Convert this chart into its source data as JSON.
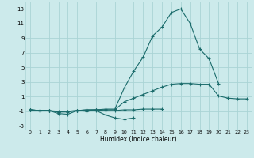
{
  "xlabel": "Humidex (Indice chaleur)",
  "bg_color": "#cceaeb",
  "grid_color": "#aad4d5",
  "line_color": "#1a6b6b",
  "xlim": [
    -0.5,
    23.5
  ],
  "ylim": [
    -3.5,
    14.0
  ],
  "xticks": [
    0,
    1,
    2,
    3,
    4,
    5,
    6,
    7,
    8,
    9,
    10,
    11,
    12,
    13,
    14,
    15,
    16,
    17,
    18,
    19,
    20,
    21,
    22,
    23
  ],
  "yticks": [
    -3,
    -1,
    1,
    3,
    5,
    7,
    9,
    11,
    13
  ],
  "series": [
    {
      "x": [
        0,
        1,
        2,
        3,
        4,
        5,
        6,
        7,
        8,
        9,
        10,
        11
      ],
      "y": [
        -0.8,
        -0.9,
        -0.9,
        -1.3,
        -1.4,
        -0.9,
        -1.0,
        -0.9,
        -1.5,
        -1.9,
        -2.1,
        -1.9
      ]
    },
    {
      "x": [
        0,
        1,
        2,
        3,
        4,
        5,
        6,
        7,
        8,
        9,
        10,
        11,
        12,
        13,
        14
      ],
      "y": [
        -0.8,
        -0.9,
        -0.9,
        -1.1,
        -1.1,
        -0.9,
        -0.9,
        -0.8,
        -0.9,
        -0.9,
        -0.8,
        -0.8,
        -0.7,
        -0.7,
        -0.7
      ]
    },
    {
      "x": [
        0,
        1,
        2,
        3,
        4,
        5,
        6,
        7,
        8,
        9,
        10,
        11,
        12,
        13,
        14,
        15,
        16,
        17,
        18,
        19,
        20,
        21,
        22,
        23
      ],
      "y": [
        -0.8,
        -0.9,
        -0.9,
        -1.1,
        -1.0,
        -0.9,
        -0.8,
        -0.8,
        -0.8,
        -0.8,
        0.3,
        0.8,
        1.3,
        1.8,
        2.3,
        2.7,
        2.8,
        2.8,
        2.7,
        2.7,
        1.1,
        0.8,
        0.7,
        0.7
      ]
    },
    {
      "x": [
        0,
        1,
        2,
        3,
        4,
        5,
        6,
        7,
        8,
        9,
        10,
        11,
        12,
        13,
        14,
        15,
        16,
        17,
        18,
        19,
        20
      ],
      "y": [
        -0.8,
        -0.9,
        -0.9,
        -1.0,
        -1.0,
        -0.9,
        -0.8,
        -0.8,
        -0.7,
        -0.7,
        2.2,
        4.5,
        6.4,
        9.3,
        10.5,
        12.5,
        13.0,
        11.0,
        7.5,
        6.2,
        2.8
      ]
    }
  ]
}
